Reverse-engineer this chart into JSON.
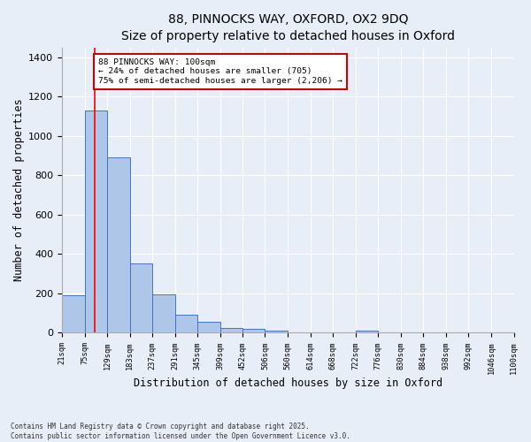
{
  "title_line1": "88, PINNOCKS WAY, OXFORD, OX2 9DQ",
  "title_line2": "Size of property relative to detached houses in Oxford",
  "xlabel": "Distribution of detached houses by size in Oxford",
  "ylabel": "Number of detached properties",
  "bar_edges": [
    21,
    75,
    129,
    183,
    237,
    291,
    345,
    399,
    452,
    506,
    560,
    614,
    668,
    722,
    776,
    830,
    884,
    938,
    992,
    1046,
    1100
  ],
  "bar_heights": [
    192,
    1130,
    893,
    352,
    195,
    90,
    55,
    22,
    20,
    12,
    0,
    0,
    0,
    12,
    0,
    0,
    0,
    0,
    0,
    0
  ],
  "bar_color": "#aec6e8",
  "bar_edge_color": "#4472c4",
  "bg_color": "#e8eef8",
  "grid_color": "#ffffff",
  "red_line_x": 100,
  "annotation_text": "88 PINNOCKS WAY: 100sqm\n← 24% of detached houses are smaller (705)\n75% of semi-detached houses are larger (2,206) →",
  "annotation_box_color": "#ffffff",
  "annotation_box_edge_color": "#cc0000",
  "ylim": [
    0,
    1450
  ],
  "yticks": [
    0,
    200,
    400,
    600,
    800,
    1000,
    1200,
    1400
  ],
  "tick_labels": [
    "21sqm",
    "75sqm",
    "129sqm",
    "183sqm",
    "237sqm",
    "291sqm",
    "345sqm",
    "399sqm",
    "452sqm",
    "506sqm",
    "560sqm",
    "614sqm",
    "668sqm",
    "722sqm",
    "776sqm",
    "830sqm",
    "884sqm",
    "938sqm",
    "992sqm",
    "1046sqm",
    "1100sqm"
  ],
  "footer_line1": "Contains HM Land Registry data © Crown copyright and database right 2025.",
  "footer_line2": "Contains public sector information licensed under the Open Government Licence v3.0."
}
